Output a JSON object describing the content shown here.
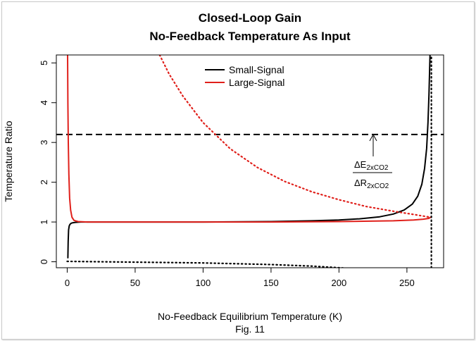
{
  "chart_data": {
    "type": "line",
    "title": [
      "Closed-Loop Gain",
      "No-Feedback Temperature As Input"
    ],
    "xlabel": "No-Feedback Equilibrium Temperature (K)",
    "caption": "Fig. 11",
    "ylabel": "Temperature Ratio",
    "xlim": [
      -8,
      277
    ],
    "ylim": [
      -0.15,
      5.2
    ],
    "x_ticks": [
      0,
      50,
      100,
      150,
      200,
      250
    ],
    "y_ticks": [
      0,
      1,
      2,
      3,
      4,
      5
    ],
    "legend": {
      "position": "top-center",
      "entries": [
        {
          "label": "Small-Signal",
          "color": "#000000"
        },
        {
          "label": "Large-Signal",
          "color": "#e0201b"
        }
      ]
    },
    "series": [
      {
        "name": "Small-Signal",
        "color": "#000000",
        "style": "solid",
        "x": [
          0.5,
          0.7,
          1,
          1.5,
          2,
          3,
          4,
          6,
          10,
          20,
          50,
          100,
          150,
          180,
          200,
          215,
          230,
          240,
          248,
          254,
          258,
          261,
          263,
          264.5,
          265.5,
          266.2,
          266.7,
          267
        ],
        "y": [
          0.1,
          0.5,
          0.8,
          0.9,
          0.94,
          0.97,
          0.98,
          0.99,
          1.0,
          1.0,
          1.0,
          1.0,
          1.01,
          1.03,
          1.05,
          1.08,
          1.13,
          1.2,
          1.3,
          1.45,
          1.65,
          1.95,
          2.35,
          2.85,
          3.5,
          4.2,
          4.8,
          5.2
        ]
      },
      {
        "name": "Large-Signal",
        "color": "#e0201b",
        "style": "solid",
        "x": [
          0.3,
          0.5,
          0.8,
          1.2,
          1.8,
          2.5,
          3.5,
          5,
          8,
          15,
          50,
          100,
          150,
          200,
          240,
          255,
          262,
          266,
          267.5
        ],
        "y": [
          5.2,
          4.0,
          3.0,
          2.2,
          1.6,
          1.3,
          1.12,
          1.04,
          1.01,
          1.0,
          1.0,
          1.0,
          1.0,
          1.01,
          1.03,
          1.05,
          1.07,
          1.09,
          1.12
        ]
      },
      {
        "name": "Large-Signal dotted",
        "color": "#e0201b",
        "style": "dotted",
        "x": [
          68,
          75,
          85,
          100,
          120,
          140,
          160,
          180,
          200,
          220,
          240,
          255,
          267
        ],
        "y": [
          5.2,
          4.72,
          4.17,
          3.5,
          2.84,
          2.37,
          2.02,
          1.76,
          1.56,
          1.39,
          1.27,
          1.19,
          1.12
        ]
      },
      {
        "name": "Small-Signal dotted",
        "color": "#000000",
        "style": "dotted",
        "x": [
          0,
          50,
          100,
          150,
          180,
          200,
          210
        ],
        "y": [
          0.01,
          -0.01,
          -0.03,
          -0.07,
          -0.11,
          -0.15,
          -0.17
        ]
      },
      {
        "name": "Vertical asymptote",
        "color": "#000000",
        "style": "dotted",
        "x": [
          268,
          268
        ],
        "y": [
          -0.15,
          5.2
        ]
      }
    ],
    "reference_line": {
      "y": 3.2,
      "style": "dashed",
      "color": "#000000"
    },
    "annotation": {
      "numerator": "ΔE",
      "numerator_sub": "2xCO2",
      "denominator": "ΔR",
      "denominator_sub": "2xCO2",
      "arrow_target": {
        "x": 226,
        "y": 3.2
      }
    }
  }
}
